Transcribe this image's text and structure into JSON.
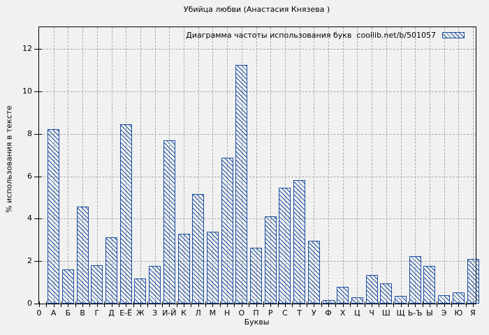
{
  "chart_data": {
    "type": "bar",
    "title": "Убийца любви (Анастасия Князева )",
    "legend": "Диаграмма частоты использования букв  coollib.net/b/501057",
    "legend_swatch_icon": "hatched-swatch",
    "legend_position": "top-right-inside",
    "xlabel": "Буквы",
    "ylabel": "% использования в тексте",
    "ylim": [
      0,
      13
    ],
    "yticks": [
      0,
      2,
      4,
      6,
      8,
      10,
      12
    ],
    "zero_tick_label": "0",
    "grid": true,
    "bar_color": "#1c4fa0",
    "grid_color": "#a9a9a9",
    "background_color": "#f1f1f1",
    "axis_color": "#000000",
    "categories": [
      "А",
      "Б",
      "В",
      "Г",
      "Д",
      "Е-Ё",
      "Ж",
      "З",
      "И-Й",
      "К",
      "Л",
      "М",
      "Н",
      "О",
      "П",
      "Р",
      "С",
      "Т",
      "У",
      "Ф",
      "Х",
      "Ц",
      "Ч",
      "Ш",
      "Щ",
      "Ь-Ъ",
      "Ы",
      "Э",
      "Ю",
      "Я"
    ],
    "values": [
      8.22,
      1.6,
      4.58,
      1.81,
      3.14,
      8.46,
      1.18,
      1.77,
      7.71,
      3.3,
      5.17,
      3.38,
      6.86,
      11.26,
      2.63,
      4.11,
      5.45,
      5.81,
      2.95,
      0.15,
      0.8,
      0.31,
      1.35,
      0.94,
      0.35,
      2.22,
      1.77,
      0.38,
      0.53,
      2.1
    ]
  }
}
